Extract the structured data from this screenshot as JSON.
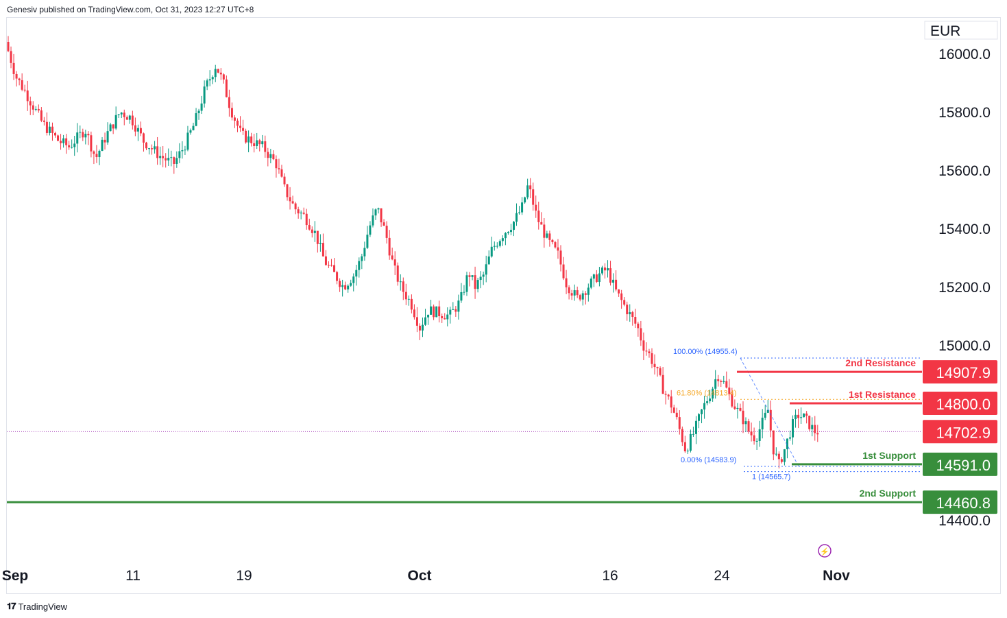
{
  "header": {
    "publisher": "Genesiv published on TradingView.com, Oct 31, 2023 12:27 UTC+8"
  },
  "footer": {
    "brand": "TradingView"
  },
  "chart_data": {
    "type": "candlestick",
    "currency": "EUR",
    "ylim": [
      14400,
      16000
    ],
    "y_ticks": [
      "16000.0",
      "15800.0",
      "15600.0",
      "15400.0",
      "15200.0",
      "15000.0",
      "14400.0"
    ],
    "x_ticks": [
      "Sep",
      "11",
      "19",
      "Oct",
      "16",
      "24",
      "Nov"
    ],
    "grid": false,
    "colors": {
      "up": "#089981",
      "down": "#f23645",
      "resistance": "#f23645",
      "support": "#388e3c",
      "fib_blue": "#2962ff",
      "fib_gold": "#f5a623",
      "current": "#9c27b0"
    },
    "current_price": {
      "value": 14702.9,
      "label": "14702.9"
    },
    "levels": [
      {
        "name": "2nd Resistance",
        "value": 14907.9,
        "label": "14907.9",
        "kind": "resistance"
      },
      {
        "name": "1st Resistance",
        "value": 14800.0,
        "label": "14800.0",
        "kind": "resistance"
      },
      {
        "name": "1st Support",
        "value": 14591.0,
        "label": "14591.0",
        "kind": "support"
      },
      {
        "name": "2nd Support",
        "value": 14460.8,
        "label": "14460.8",
        "kind": "support"
      }
    ],
    "fibonacci": [
      {
        "label": "100.00% (14955.4)",
        "value": 14955.4
      },
      {
        "label": "61.80% (14813.4)",
        "value": 14813.4
      },
      {
        "label": "0.00% (14583.9)",
        "value": 14583.9
      },
      {
        "label": "1 (14565.7)",
        "value": 14565.7
      }
    ],
    "price_path": [
      [
        0,
        16040
      ],
      [
        10,
        15920
      ],
      [
        20,
        15860
      ],
      [
        35,
        15760
      ],
      [
        50,
        15700
      ],
      [
        60,
        15680
      ],
      [
        75,
        15740
      ],
      [
        85,
        15640
      ],
      [
        95,
        15720
      ],
      [
        108,
        15800
      ],
      [
        118,
        15780
      ],
      [
        130,
        15700
      ],
      [
        145,
        15650
      ],
      [
        158,
        15620
      ],
      [
        168,
        15680
      ],
      [
        178,
        15760
      ],
      [
        188,
        15880
      ],
      [
        198,
        15960
      ],
      [
        205,
        15900
      ],
      [
        212,
        15810
      ],
      [
        222,
        15720
      ],
      [
        232,
        15700
      ],
      [
        242,
        15680
      ],
      [
        255,
        15620
      ],
      [
        262,
        15540
      ],
      [
        272,
        15470
      ],
      [
        282,
        15440
      ],
      [
        292,
        15380
      ],
      [
        300,
        15290
      ],
      [
        310,
        15240
      ],
      [
        318,
        15200
      ],
      [
        328,
        15240
      ],
      [
        335,
        15300
      ],
      [
        342,
        15400
      ],
      [
        350,
        15470
      ],
      [
        358,
        15380
      ],
      [
        365,
        15270
      ],
      [
        372,
        15200
      ],
      [
        382,
        15140
      ],
      [
        390,
        15060
      ],
      [
        398,
        15120
      ],
      [
        408,
        15110
      ],
      [
        418,
        15100
      ],
      [
        428,
        15150
      ],
      [
        436,
        15250
      ],
      [
        442,
        15200
      ],
      [
        450,
        15240
      ],
      [
        458,
        15330
      ],
      [
        468,
        15380
      ],
      [
        478,
        15420
      ],
      [
        486,
        15470
      ],
      [
        492,
        15550
      ],
      [
        500,
        15440
      ],
      [
        510,
        15360
      ],
      [
        520,
        15310
      ],
      [
        528,
        15210
      ],
      [
        538,
        15160
      ],
      [
        548,
        15200
      ],
      [
        558,
        15240
      ],
      [
        566,
        15260
      ],
      [
        575,
        15180
      ],
      [
        585,
        15120
      ],
      [
        595,
        15060
      ],
      [
        600,
        15000
      ],
      [
        607,
        14960
      ],
      [
        614,
        14900
      ],
      [
        620,
        14840
      ],
      [
        626,
        14800
      ],
      [
        632,
        14740
      ],
      [
        640,
        14640
      ],
      [
        648,
        14700
      ],
      [
        656,
        14780
      ],
      [
        664,
        14840
      ],
      [
        670,
        14900
      ],
      [
        676,
        14870
      ],
      [
        682,
        14820
      ],
      [
        688,
        14780
      ],
      [
        695,
        14740
      ],
      [
        700,
        14700
      ],
      [
        706,
        14680
      ],
      [
        712,
        14730
      ],
      [
        718,
        14780
      ],
      [
        722,
        14650
      ],
      [
        728,
        14590
      ],
      [
        734,
        14650
      ],
      [
        740,
        14720
      ],
      [
        746,
        14760
      ],
      [
        752,
        14750
      ],
      [
        758,
        14720
      ],
      [
        762,
        14703
      ]
    ],
    "x_domain": [
      0,
      860
    ]
  }
}
